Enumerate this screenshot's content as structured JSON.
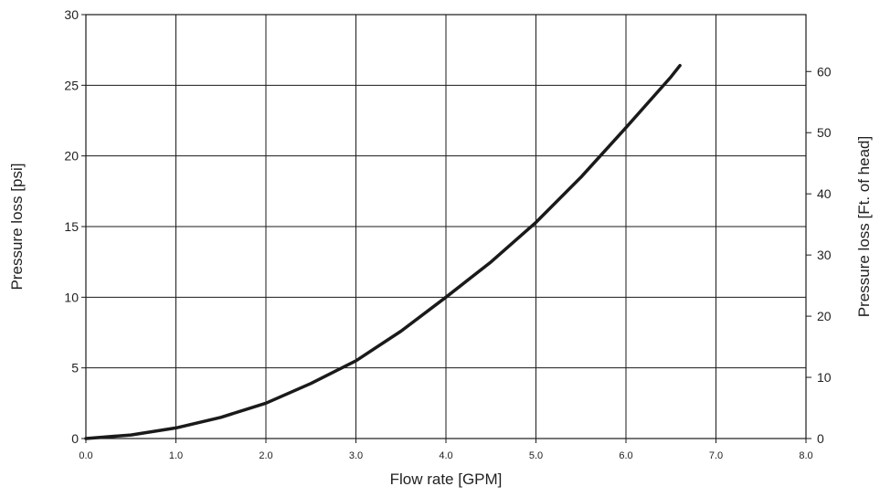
{
  "chart_data": {
    "type": "line",
    "title": "",
    "xlabel": "Flow rate [GPM]",
    "ylabel": "Pressure loss [psi]",
    "y2label": "Pressure loss [Ft. of head]",
    "xlim": [
      0,
      8
    ],
    "ylim": [
      0,
      30
    ],
    "y2lim": [
      0,
      69.3
    ],
    "x_ticks": [
      "0.0",
      "1.0",
      "2.0",
      "3.0",
      "4.0",
      "5.0",
      "6.0",
      "7.0",
      "8.0"
    ],
    "y_ticks": [
      "0",
      "5",
      "10",
      "15",
      "20",
      "25",
      "30"
    ],
    "y2_ticks": [
      "0",
      "10",
      "20",
      "30",
      "40",
      "50",
      "60"
    ],
    "grid": true,
    "series": [
      {
        "name": "",
        "color": "#1a1a1a",
        "x": [
          0.0,
          0.5,
          1.0,
          1.5,
          2.0,
          2.5,
          3.0,
          3.5,
          4.0,
          4.5,
          5.0,
          5.5,
          6.0,
          6.5,
          6.6
        ],
        "y": [
          0.0,
          0.25,
          0.75,
          1.5,
          2.5,
          3.9,
          5.5,
          7.6,
          10.0,
          12.5,
          15.3,
          18.5,
          22.0,
          25.6,
          26.4
        ]
      }
    ]
  }
}
